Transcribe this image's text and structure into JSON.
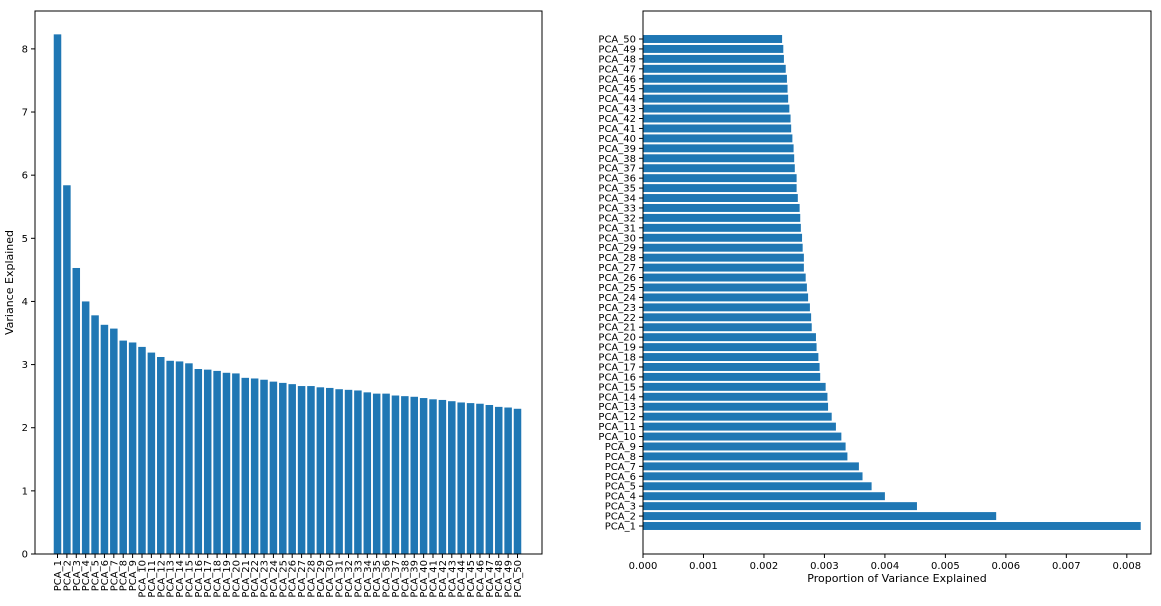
{
  "chart_data": [
    {
      "type": "bar",
      "orientation": "vertical",
      "ylabel": "Variance Explained",
      "xlabel": "",
      "ylim": [
        0,
        8.6
      ],
      "yticks": [
        0,
        1,
        2,
        3,
        4,
        5,
        6,
        7,
        8
      ],
      "bar_color": "#1f77b4",
      "categories": [
        "PCA_1",
        "PCA_2",
        "PCA_3",
        "PCA_4",
        "PCA_5",
        "PCA_6",
        "PCA_7",
        "PCA_8",
        "PCA_9",
        "PCA_10",
        "PCA_11",
        "PCA_12",
        "PCA_13",
        "PCA_14",
        "PCA_15",
        "PCA_16",
        "PCA_17",
        "PCA_18",
        "PCA_19",
        "PCA_20",
        "PCA_21",
        "PCA_22",
        "PCA_23",
        "PCA_24",
        "PCA_25",
        "PCA_26",
        "PCA_27",
        "PCA_28",
        "PCA_29",
        "PCA_30",
        "PCA_31",
        "PCA_32",
        "PCA_33",
        "PCA_34",
        "PCA_35",
        "PCA_36",
        "PCA_37",
        "PCA_38",
        "PCA_39",
        "PCA_40",
        "PCA_41",
        "PCA_42",
        "PCA_43",
        "PCA_44",
        "PCA_45",
        "PCA_46",
        "PCA_47",
        "PCA_48",
        "PCA_49",
        "PCA_50"
      ],
      "values": [
        8.23,
        5.84,
        4.53,
        4.0,
        3.78,
        3.63,
        3.57,
        3.38,
        3.35,
        3.28,
        3.19,
        3.12,
        3.06,
        3.05,
        3.02,
        2.93,
        2.92,
        2.9,
        2.87,
        2.86,
        2.79,
        2.78,
        2.76,
        2.73,
        2.71,
        2.69,
        2.66,
        2.66,
        2.64,
        2.63,
        2.61,
        2.6,
        2.59,
        2.56,
        2.54,
        2.54,
        2.51,
        2.5,
        2.49,
        2.47,
        2.45,
        2.44,
        2.42,
        2.4,
        2.39,
        2.38,
        2.36,
        2.33,
        2.32,
        2.3
      ]
    },
    {
      "type": "bar",
      "orientation": "horizontal",
      "xlabel": "Proportion of Variance Explained",
      "ylabel": "",
      "xlim": [
        0,
        0.0084
      ],
      "xticks": [
        "0.000",
        "0.001",
        "0.002",
        "0.003",
        "0.004",
        "0.005",
        "0.006",
        "0.007",
        "0.008"
      ],
      "bar_color": "#1f77b4",
      "categories": [
        "PCA_1",
        "PCA_2",
        "PCA_3",
        "PCA_4",
        "PCA_5",
        "PCA_6",
        "PCA_7",
        "PCA_8",
        "PCA_9",
        "PCA_10",
        "PCA_11",
        "PCA_12",
        "PCA_13",
        "PCA_14",
        "PCA_15",
        "PCA_16",
        "PCA_17",
        "PCA_18",
        "PCA_19",
        "PCA_20",
        "PCA_21",
        "PCA_22",
        "PCA_23",
        "PCA_24",
        "PCA_25",
        "PCA_26",
        "PCA_27",
        "PCA_28",
        "PCA_29",
        "PCA_30",
        "PCA_31",
        "PCA_32",
        "PCA_33",
        "PCA_34",
        "PCA_35",
        "PCA_36",
        "PCA_37",
        "PCA_38",
        "PCA_39",
        "PCA_40",
        "PCA_41",
        "PCA_42",
        "PCA_43",
        "PCA_44",
        "PCA_45",
        "PCA_46",
        "PCA_47",
        "PCA_48",
        "PCA_49",
        "PCA_50"
      ],
      "values": [
        0.00823,
        0.00584,
        0.00453,
        0.004,
        0.00378,
        0.00363,
        0.00357,
        0.00338,
        0.00335,
        0.00328,
        0.00319,
        0.00312,
        0.00306,
        0.00305,
        0.00302,
        0.00293,
        0.00292,
        0.0029,
        0.00287,
        0.00286,
        0.00279,
        0.00278,
        0.00276,
        0.00273,
        0.00271,
        0.00269,
        0.00266,
        0.00266,
        0.00264,
        0.00263,
        0.00261,
        0.0026,
        0.00259,
        0.00256,
        0.00254,
        0.00254,
        0.00251,
        0.0025,
        0.00249,
        0.00247,
        0.00245,
        0.00244,
        0.00242,
        0.0024,
        0.00239,
        0.00238,
        0.00236,
        0.00233,
        0.00232,
        0.0023
      ]
    }
  ]
}
